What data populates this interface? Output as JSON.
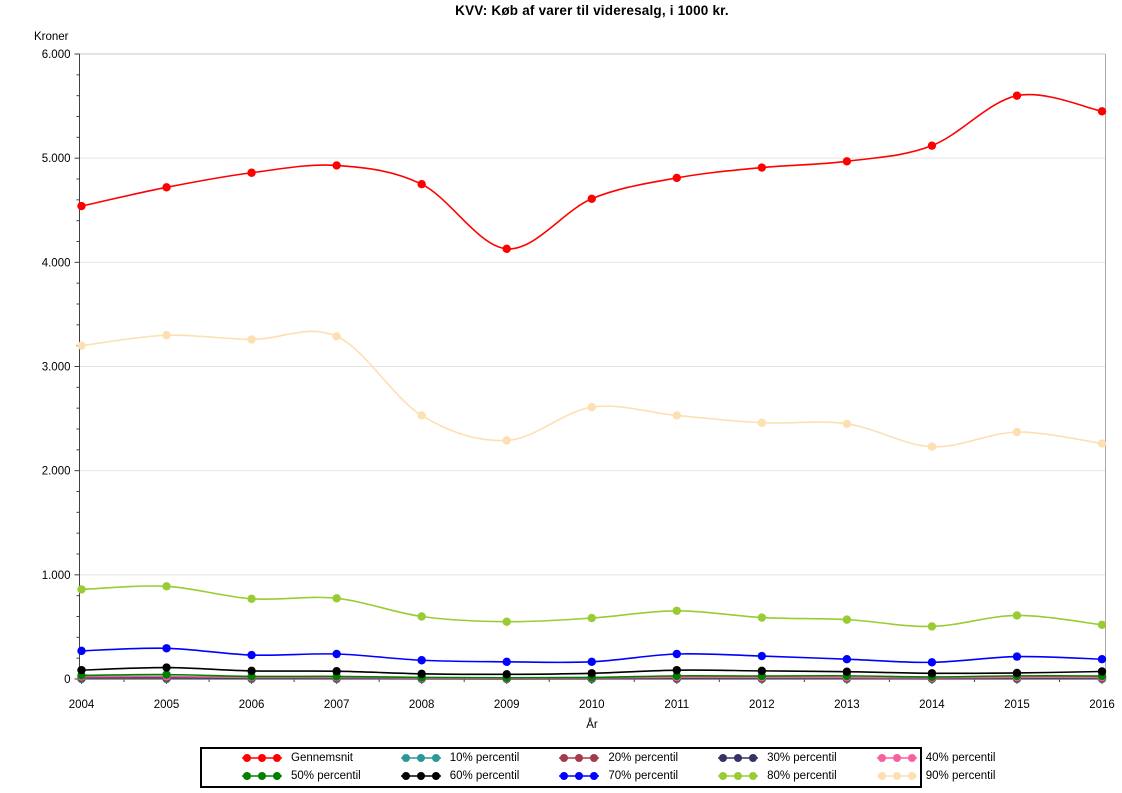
{
  "title": "KVV: Køb af varer til videresalg, i 1000 kr.",
  "chart_data": {
    "type": "line",
    "title": "KVV: Køb af varer til videresalg, i 1000 kr.",
    "xlabel": "År",
    "ylabel": "Kroner",
    "x": [
      2004,
      2005,
      2006,
      2007,
      2008,
      2009,
      2010,
      2011,
      2012,
      2013,
      2014,
      2015,
      2016
    ],
    "ylim": [
      0,
      6000
    ],
    "ytick_interval": 1000,
    "ytick_labels": [
      "0",
      "1.000",
      "2.000",
      "3.000",
      "4.000",
      "5.000",
      "6.000"
    ],
    "y_minor_per_major": 4,
    "grid": "horizontal-major",
    "legend_position": "bottom",
    "legend_rows": 2,
    "interpolation": "smooth",
    "series": [
      {
        "name": "Gennemsnit",
        "color": "#FF0000",
        "values": [
          4540,
          4720,
          4860,
          4930,
          4750,
          4130,
          4610,
          4810,
          4910,
          4970,
          5120,
          5600,
          5450
        ]
      },
      {
        "name": "10% percentil",
        "color": "#2D9696",
        "values": [
          0,
          0,
          0,
          0,
          0,
          0,
          0,
          0,
          0,
          0,
          0,
          0,
          0
        ]
      },
      {
        "name": "20% percentil",
        "color": "#A33B4B",
        "values": [
          8,
          8,
          5,
          5,
          3,
          2,
          3,
          5,
          5,
          5,
          3,
          5,
          5
        ]
      },
      {
        "name": "30% percentil",
        "color": "#333366",
        "values": [
          15,
          16,
          10,
          10,
          6,
          5,
          6,
          12,
          10,
          10,
          7,
          10,
          10
        ]
      },
      {
        "name": "40% percentil",
        "color": "#F760A0",
        "values": [
          22,
          24,
          15,
          15,
          9,
          8,
          10,
          17,
          15,
          15,
          11,
          16,
          15
        ]
      },
      {
        "name": "50% percentil",
        "color": "#008000",
        "values": [
          35,
          42,
          25,
          25,
          15,
          12,
          15,
          30,
          28,
          30,
          20,
          30,
          28
        ]
      },
      {
        "name": "60% percentil",
        "color": "#000000",
        "values": [
          85,
          110,
          78,
          75,
          50,
          45,
          55,
          85,
          78,
          70,
          55,
          58,
          72
        ]
      },
      {
        "name": "70% percentil",
        "color": "#0000FF",
        "values": [
          270,
          295,
          230,
          240,
          180,
          165,
          165,
          240,
          220,
          190,
          160,
          215,
          190
        ]
      },
      {
        "name": "80% percentil",
        "color": "#99CC33",
        "values": [
          860,
          890,
          770,
          775,
          600,
          550,
          585,
          655,
          590,
          570,
          505,
          610,
          520
        ]
      },
      {
        "name": "90% percentil",
        "color": "#FCE0B2",
        "values": [
          3200,
          3300,
          3260,
          3290,
          2530,
          2290,
          2610,
          2530,
          2460,
          2450,
          2230,
          2370,
          2260
        ]
      }
    ]
  }
}
